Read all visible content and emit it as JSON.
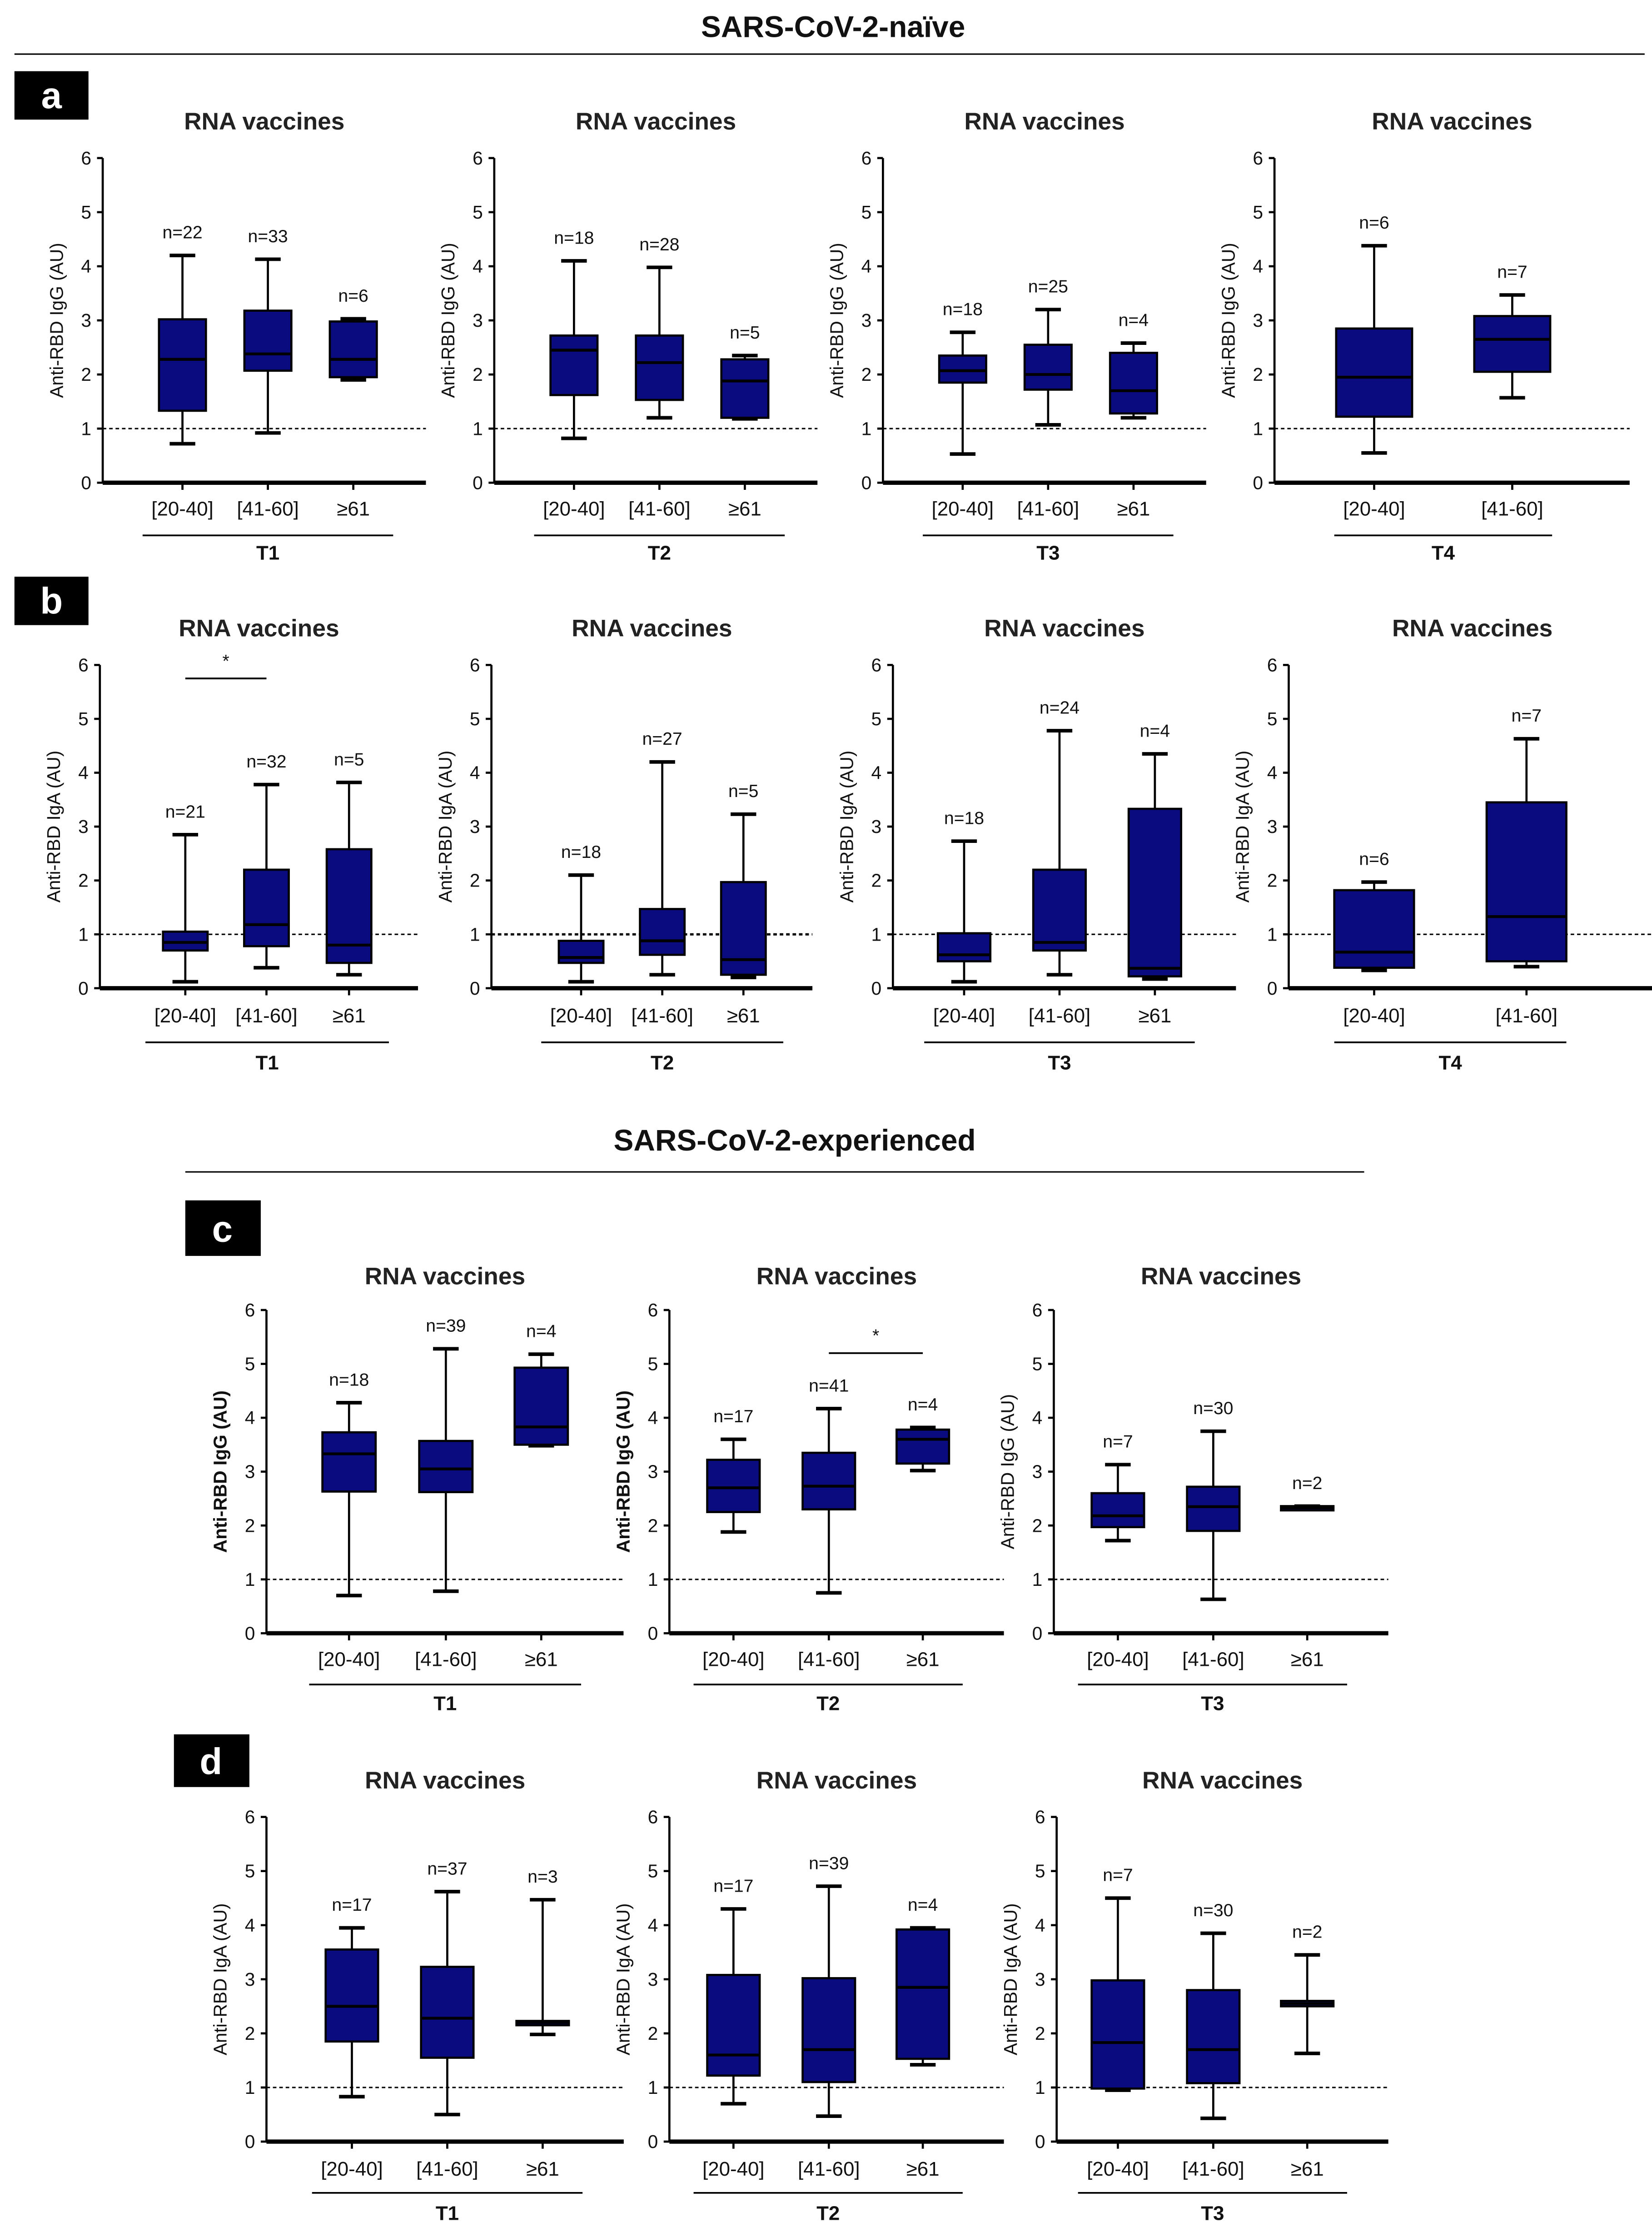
{
  "headers": {
    "naive": "SARS-CoV-2-naïve",
    "experienced": "SARS-CoV-2-experienced"
  },
  "panel_labels": [
    "a",
    "b",
    "c",
    "d"
  ],
  "colors": {
    "box_fill": "#0b0b80",
    "line": "#000000"
  },
  "chart_data": [
    {
      "type": "box",
      "panel": "a",
      "title": "RNA vaccines",
      "ylabel": "Anti-RBD IgG (AU)",
      "timepoint": "T1",
      "ylim": [
        0,
        6
      ],
      "yticks": [
        "0",
        "1",
        "2",
        "3",
        "4",
        "5",
        "6"
      ],
      "threshold": 1,
      "categories": [
        "[20-40]",
        "[41-60]",
        "≥61"
      ],
      "boxes": [
        {
          "min": 0.72,
          "q1": 1.33,
          "median": 2.28,
          "q3": 3.02,
          "max": 4.2,
          "n": "n=22"
        },
        {
          "min": 0.92,
          "q1": 2.07,
          "median": 2.38,
          "q3": 3.18,
          "max": 4.13,
          "n": "n=33"
        },
        {
          "min": 1.9,
          "q1": 1.95,
          "median": 2.28,
          "q3": 2.98,
          "max": 3.03,
          "n": "n=6"
        }
      ],
      "significance": []
    },
    {
      "type": "box",
      "panel": "a",
      "title": "RNA vaccines",
      "ylabel": "Anti-RBD IgG (AU)",
      "timepoint": "T2",
      "ylim": [
        0,
        6
      ],
      "yticks": [
        "0",
        "1",
        "2",
        "3",
        "4",
        "5",
        "6"
      ],
      "threshold": 1,
      "categories": [
        "[20-40]",
        "[41-60]",
        "≥61"
      ],
      "boxes": [
        {
          "min": 0.82,
          "q1": 1.62,
          "median": 2.45,
          "q3": 2.72,
          "max": 4.1,
          "n": "n=18"
        },
        {
          "min": 1.2,
          "q1": 1.53,
          "median": 2.22,
          "q3": 2.72,
          "max": 3.98,
          "n": "n=28"
        },
        {
          "min": 1.18,
          "q1": 1.2,
          "median": 1.88,
          "q3": 2.28,
          "max": 2.35,
          "n": "n=5"
        }
      ],
      "significance": []
    },
    {
      "type": "box",
      "panel": "a",
      "title": "RNA vaccines",
      "ylabel": "Anti-RBD IgG (AU)",
      "timepoint": "T3",
      "ylim": [
        0,
        6
      ],
      "yticks": [
        "0",
        "1",
        "2",
        "3",
        "4",
        "5",
        "6"
      ],
      "threshold": 1,
      "categories": [
        "[20-40]",
        "[41-60]",
        "≥61"
      ],
      "boxes": [
        {
          "min": 0.53,
          "q1": 1.85,
          "median": 2.07,
          "q3": 2.35,
          "max": 2.78,
          "n": "n=18"
        },
        {
          "min": 1.07,
          "q1": 1.72,
          "median": 2.0,
          "q3": 2.55,
          "max": 3.2,
          "n": "n=25"
        },
        {
          "min": 1.2,
          "q1": 1.28,
          "median": 1.7,
          "q3": 2.4,
          "max": 2.58,
          "n": "n=4"
        }
      ],
      "significance": []
    },
    {
      "type": "box",
      "panel": "a",
      "title": "RNA vaccines",
      "ylabel": "Anti-RBD IgG (AU)",
      "timepoint": "T4",
      "ylim": [
        0,
        6
      ],
      "yticks": [
        "0",
        "1",
        "2",
        "3",
        "4",
        "5",
        "6"
      ],
      "threshold": 1,
      "categories": [
        "[20-40]",
        "[41-60]"
      ],
      "boxes": [
        {
          "min": 0.55,
          "q1": 1.22,
          "median": 1.95,
          "q3": 2.85,
          "max": 4.38,
          "n": "n=6"
        },
        {
          "min": 1.57,
          "q1": 2.05,
          "median": 2.65,
          "q3": 3.08,
          "max": 3.47,
          "n": "n=7"
        }
      ],
      "significance": []
    },
    {
      "type": "box",
      "panel": "b",
      "title": "RNA vaccines",
      "ylabel": "Anti-RBD IgA (AU)",
      "timepoint": "T1",
      "ylim": [
        0,
        6
      ],
      "yticks": [
        "0",
        "1",
        "2",
        "3",
        "4",
        "5",
        "6"
      ],
      "threshold": 1,
      "categories": [
        "[20-40]",
        "[41-60]",
        "≥61"
      ],
      "boxes": [
        {
          "min": 0.12,
          "q1": 0.7,
          "median": 0.85,
          "q3": 1.05,
          "max": 2.85,
          "n": "n=21"
        },
        {
          "min": 0.38,
          "q1": 0.78,
          "median": 1.18,
          "q3": 2.2,
          "max": 3.78,
          "n": "n=32"
        },
        {
          "min": 0.25,
          "q1": 0.47,
          "median": 0.8,
          "q3": 2.58,
          "max": 3.82,
          "n": "n=5"
        }
      ],
      "significance": [
        {
          "from": 0,
          "to": 1,
          "y": 5.75,
          "label": "*"
        }
      ]
    },
    {
      "type": "box",
      "panel": "b",
      "title": "RNA vaccines",
      "ylabel": "Anti-RBD IgA (AU)",
      "timepoint": "T2",
      "ylim": [
        0,
        6
      ],
      "yticks": [
        "0",
        "1",
        "2",
        "3",
        "4",
        "5",
        "6"
      ],
      "threshold": 1,
      "categories": [
        "[20-40]",
        "[41-60]",
        "≥61"
      ],
      "boxes": [
        {
          "min": 0.12,
          "q1": 0.47,
          "median": 0.57,
          "q3": 0.88,
          "max": 2.1,
          "n": "n=18"
        },
        {
          "min": 0.25,
          "q1": 0.62,
          "median": 0.88,
          "q3": 1.47,
          "max": 4.2,
          "n": "n=27"
        },
        {
          "min": 0.2,
          "q1": 0.25,
          "median": 0.53,
          "q3": 1.97,
          "max": 3.23,
          "n": "n=5"
        }
      ],
      "significance": []
    },
    {
      "type": "box",
      "panel": "b",
      "title": "RNA vaccines",
      "ylabel": "Anti-RBD IgA (AU)",
      "timepoint": "T3",
      "ylim": [
        0,
        6
      ],
      "yticks": [
        "0",
        "1",
        "2",
        "3",
        "4",
        "5",
        "6"
      ],
      "threshold": 1,
      "categories": [
        "[20-40]",
        "[41-60]",
        "≥61"
      ],
      "boxes": [
        {
          "min": 0.12,
          "q1": 0.5,
          "median": 0.62,
          "q3": 1.02,
          "max": 2.73,
          "n": "n=18"
        },
        {
          "min": 0.25,
          "q1": 0.7,
          "median": 0.85,
          "q3": 2.2,
          "max": 4.78,
          "n": "n=24"
        },
        {
          "min": 0.17,
          "q1": 0.22,
          "median": 0.37,
          "q3": 3.33,
          "max": 4.35,
          "n": "n=4"
        }
      ],
      "significance": []
    },
    {
      "type": "box",
      "panel": "b",
      "title": "RNA vaccines",
      "ylabel": "Anti-RBD IgA (AU)",
      "timepoint": "T4",
      "ylim": [
        0,
        6
      ],
      "yticks": [
        "0",
        "1",
        "2",
        "3",
        "4",
        "5",
        "6"
      ],
      "threshold": 1,
      "categories": [
        "[20-40]",
        "[41-60]"
      ],
      "boxes": [
        {
          "min": 0.33,
          "q1": 0.38,
          "median": 0.67,
          "q3": 1.82,
          "max": 1.97,
          "n": "n=6"
        },
        {
          "min": 0.4,
          "q1": 0.5,
          "median": 1.33,
          "q3": 3.45,
          "max": 4.63,
          "n": "n=7"
        }
      ],
      "significance": []
    },
    {
      "type": "box",
      "panel": "c",
      "title": "RNA vaccines",
      "ylabel": "Anti-RBD IgG (AU)",
      "timepoint": "T1",
      "ylim": [
        0,
        6
      ],
      "yticks": [
        "0",
        "1",
        "2",
        "3",
        "4",
        "5",
        "6"
      ],
      "threshold": 1,
      "categories": [
        "[20-40]",
        "[41-60]",
        "≥61"
      ],
      "boxes": [
        {
          "min": 0.7,
          "q1": 2.63,
          "median": 3.33,
          "q3": 3.73,
          "max": 4.28,
          "n": "n=18"
        },
        {
          "min": 0.78,
          "q1": 2.62,
          "median": 3.05,
          "q3": 3.57,
          "max": 5.28,
          "n": "n=39"
        },
        {
          "min": 3.48,
          "q1": 3.5,
          "median": 3.83,
          "q3": 4.93,
          "max": 5.18,
          "n": "n=4"
        }
      ],
      "significance": []
    },
    {
      "type": "box",
      "panel": "c",
      "title": "RNA vaccines",
      "ylabel": "Anti-RBD IgG (AU)",
      "timepoint": "T2",
      "ylim": [
        0,
        6
      ],
      "yticks": [
        "0",
        "1",
        "2",
        "3",
        "4",
        "5",
        "6"
      ],
      "threshold": 1,
      "categories": [
        "[20-40]",
        "[41-60]",
        "≥61"
      ],
      "boxes": [
        {
          "min": 1.88,
          "q1": 2.25,
          "median": 2.7,
          "q3": 3.22,
          "max": 3.6,
          "n": "n=17"
        },
        {
          "min": 0.75,
          "q1": 2.3,
          "median": 2.73,
          "q3": 3.35,
          "max": 4.17,
          "n": "n=41"
        },
        {
          "min": 3.02,
          "q1": 3.15,
          "median": 3.6,
          "q3": 3.78,
          "max": 3.82,
          "n": "n=4"
        }
      ],
      "significance": [
        {
          "from": 1,
          "to": 2,
          "y": 5.2,
          "label": "*"
        }
      ]
    },
    {
      "type": "box",
      "panel": "c",
      "title": "RNA vaccines",
      "ylabel": "Anti-RBD IgG (AU)",
      "timepoint": "T3",
      "ylim": [
        0,
        6
      ],
      "yticks": [
        "0",
        "1",
        "2",
        "3",
        "4",
        "5",
        "6"
      ],
      "threshold": 1,
      "categories": [
        "[20-40]",
        "[41-60]",
        "≥61"
      ],
      "boxes": [
        {
          "min": 1.72,
          "q1": 1.97,
          "median": 2.18,
          "q3": 2.6,
          "max": 3.13,
          "n": "n=7"
        },
        {
          "min": 0.63,
          "q1": 1.9,
          "median": 2.35,
          "q3": 2.72,
          "max": 3.75,
          "n": "n=30"
        },
        {
          "min": 2.3,
          "q1": 2.3,
          "median": 2.33,
          "q3": 2.36,
          "max": 2.36,
          "n": "n=2"
        }
      ],
      "significance": []
    },
    {
      "type": "box",
      "panel": "d",
      "title": "RNA vaccines",
      "ylabel": "Anti-RBD IgA (AU)",
      "timepoint": "T1",
      "ylim": [
        0,
        6
      ],
      "yticks": [
        "0",
        "1",
        "2",
        "3",
        "4",
        "5",
        "6"
      ],
      "threshold": 1,
      "categories": [
        "[20-40]",
        "[41-60]",
        "≥61"
      ],
      "boxes": [
        {
          "min": 0.83,
          "q1": 1.85,
          "median": 2.5,
          "q3": 3.55,
          "max": 3.95,
          "n": "n=17"
        },
        {
          "min": 0.5,
          "q1": 1.55,
          "median": 2.28,
          "q3": 3.23,
          "max": 4.62,
          "n": "n=37"
        },
        {
          "min": 1.98,
          "q1": 2.15,
          "median": 2.2,
          "q3": 2.23,
          "max": 4.47,
          "n": "n=3"
        }
      ],
      "significance": []
    },
    {
      "type": "box",
      "panel": "d",
      "title": "RNA vaccines",
      "ylabel": "Anti-RBD IgA (AU)",
      "timepoint": "T2",
      "ylim": [
        0,
        6
      ],
      "yticks": [
        "0",
        "1",
        "2",
        "3",
        "4",
        "5",
        "6"
      ],
      "threshold": 1,
      "categories": [
        "[20-40]",
        "[41-60]",
        "≥61"
      ],
      "boxes": [
        {
          "min": 0.7,
          "q1": 1.22,
          "median": 1.6,
          "q3": 3.08,
          "max": 4.3,
          "n": "n=17"
        },
        {
          "min": 0.47,
          "q1": 1.1,
          "median": 1.7,
          "q3": 3.02,
          "max": 4.72,
          "n": "n=39"
        },
        {
          "min": 1.42,
          "q1": 1.53,
          "median": 2.85,
          "q3": 3.92,
          "max": 3.95,
          "n": "n=4"
        }
      ],
      "significance": []
    },
    {
      "type": "box",
      "panel": "d",
      "title": "RNA vaccines",
      "ylabel": "Anti-RBD IgA (AU)",
      "timepoint": "T3",
      "ylim": [
        0,
        6
      ],
      "yticks": [
        "0",
        "1",
        "2",
        "3",
        "4",
        "5",
        "6"
      ],
      "threshold": 1,
      "categories": [
        "[20-40]",
        "[41-60]",
        "≥61"
      ],
      "boxes": [
        {
          "min": 0.95,
          "q1": 0.98,
          "median": 1.83,
          "q3": 2.98,
          "max": 4.5,
          "n": "n=7"
        },
        {
          "min": 0.43,
          "q1": 1.08,
          "median": 1.7,
          "q3": 2.8,
          "max": 3.85,
          "n": "n=30"
        },
        {
          "min": 1.63,
          "q1": 2.5,
          "median": 2.55,
          "q3": 2.6,
          "max": 3.45,
          "n": "n=2"
        }
      ],
      "significance": []
    }
  ]
}
